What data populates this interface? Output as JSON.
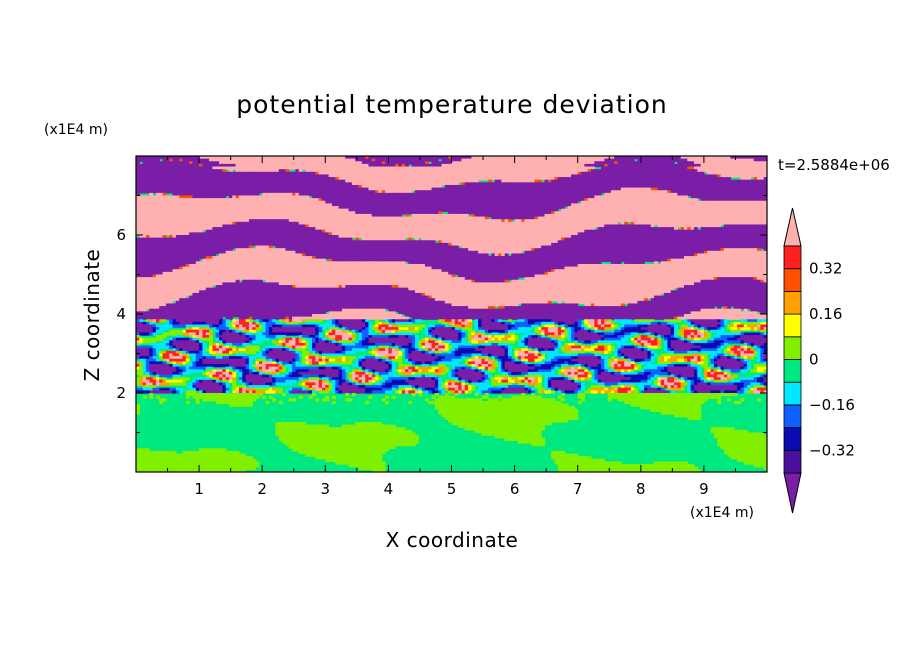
{
  "chart_data": {
    "type": "heatmap",
    "title": "potential temperature deviation",
    "xlabel": "X coordinate",
    "ylabel": "Z coordinate",
    "x_unit": "(x1E4 m)",
    "y_unit": "(x1E4 m)",
    "time_label": "t=2.5884e+06",
    "xlim": [
      0,
      10
    ],
    "ylim": [
      0,
      8
    ],
    "x_ticks": [
      "1",
      "2",
      "3",
      "4",
      "5",
      "6",
      "7",
      "8",
      "9"
    ],
    "y_ticks": [
      "2",
      "4",
      "6"
    ],
    "colorbar": {
      "levels": [
        -0.4,
        -0.32,
        -0.24,
        -0.16,
        -0.08,
        0,
        0.08,
        0.16,
        0.24,
        0.32,
        0.4
      ],
      "tick_labels": [
        "0.32",
        "0.16",
        "0",
        "−0.16",
        "−0.32"
      ],
      "tick_values": [
        0.32,
        0.16,
        0,
        -0.16,
        -0.32
      ],
      "colors": [
        "#7a1ea8",
        "#4a10a0",
        "#0b0bb0",
        "#1060ff",
        "#00e8ff",
        "#00e880",
        "#80f000",
        "#ffff00",
        "#ffa000",
        "#ff5000",
        "#ff2020",
        "#ffb0b0"
      ],
      "extend": "both"
    }
  }
}
